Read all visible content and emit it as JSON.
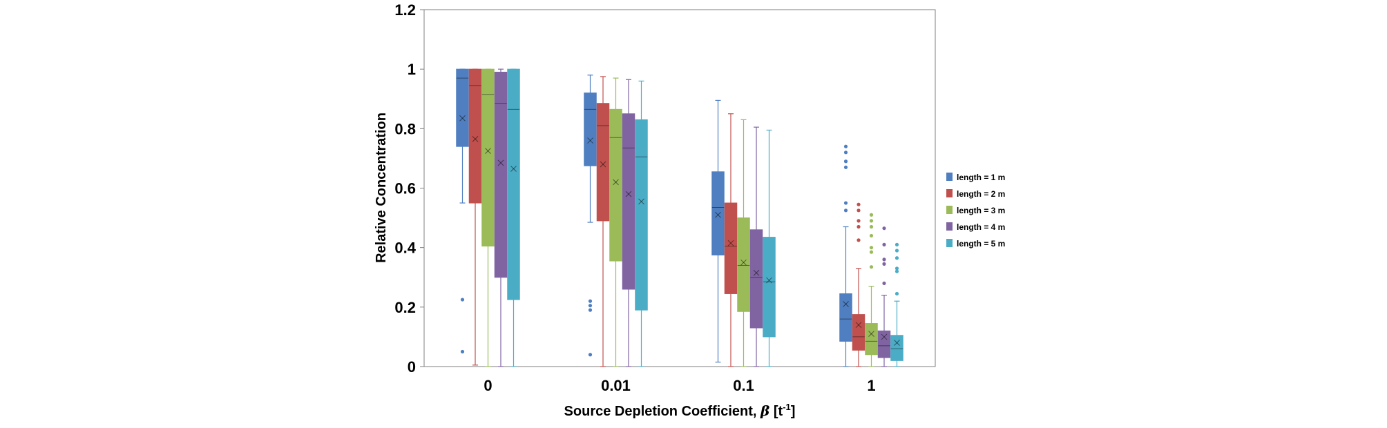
{
  "chart_data": {
    "type": "box",
    "xlabel_main": "Source Depletion Coefficient, ",
    "xlabel_beta": "β",
    "xlabel_unit_open": " [t",
    "xlabel_unit_sup": "-1",
    "xlabel_unit_close": "]",
    "ylabel": "Relative Concentration",
    "ylim": [
      0,
      1.2
    ],
    "yticks": [
      "0",
      "0.2",
      "0.4",
      "0.6",
      "0.8",
      "1",
      "1.2"
    ],
    "ytick_values": [
      0,
      0.2,
      0.4,
      0.6,
      0.8,
      1.0,
      1.2
    ],
    "categories": [
      "0",
      "0.01",
      "0.1",
      "1"
    ],
    "legend_position": "right",
    "series": [
      {
        "name": "length = 1 m",
        "color": "#4f7fc0",
        "boxes": [
          {
            "min": 0.55,
            "q1": 0.74,
            "median": 0.97,
            "q3": 1.0,
            "max": 1.0,
            "mean": 0.835,
            "outliers": [
              0.225,
              0.05
            ]
          },
          {
            "min": 0.485,
            "q1": 0.675,
            "median": 0.865,
            "q3": 0.92,
            "max": 0.98,
            "mean": 0.76,
            "outliers": [
              0.22,
              0.205,
              0.19,
              0.04
            ]
          },
          {
            "min": 0.015,
            "q1": 0.375,
            "median": 0.535,
            "q3": 0.655,
            "max": 0.895,
            "mean": 0.51,
            "outliers": []
          },
          {
            "min": 0.0,
            "q1": 0.085,
            "median": 0.16,
            "q3": 0.245,
            "max": 0.47,
            "mean": 0.21,
            "outliers": [
              0.74,
              0.72,
              0.69,
              0.67,
              0.55,
              0.525
            ]
          }
        ]
      },
      {
        "name": "length = 2 m",
        "color": "#c0504d",
        "boxes": [
          {
            "min": 0.005,
            "q1": 0.55,
            "median": 0.945,
            "q3": 1.0,
            "max": 1.0,
            "mean": 0.765,
            "outliers": []
          },
          {
            "min": 0.0,
            "q1": 0.49,
            "median": 0.81,
            "q3": 0.885,
            "max": 0.975,
            "mean": 0.68,
            "outliers": []
          },
          {
            "min": 0.0,
            "q1": 0.245,
            "median": 0.405,
            "q3": 0.55,
            "max": 0.85,
            "mean": 0.415,
            "outliers": []
          },
          {
            "min": 0.0,
            "q1": 0.055,
            "median": 0.1,
            "q3": 0.175,
            "max": 0.33,
            "mean": 0.14,
            "outliers": [
              0.545,
              0.525,
              0.49,
              0.47,
              0.425
            ]
          }
        ]
      },
      {
        "name": "length = 3 m",
        "color": "#9bbb59",
        "boxes": [
          {
            "min": 0.0,
            "q1": 0.405,
            "median": 0.915,
            "q3": 1.0,
            "max": 1.0,
            "mean": 0.725,
            "outliers": []
          },
          {
            "min": 0.0,
            "q1": 0.355,
            "median": 0.77,
            "q3": 0.865,
            "max": 0.97,
            "mean": 0.62,
            "outliers": []
          },
          {
            "min": 0.0,
            "q1": 0.185,
            "median": 0.34,
            "q3": 0.5,
            "max": 0.83,
            "mean": 0.35,
            "outliers": []
          },
          {
            "min": 0.0,
            "q1": 0.04,
            "median": 0.085,
            "q3": 0.145,
            "max": 0.27,
            "mean": 0.11,
            "outliers": [
              0.51,
              0.49,
              0.47,
              0.44,
              0.4,
              0.385,
              0.335
            ]
          }
        ]
      },
      {
        "name": "length = 4 m",
        "color": "#8064a2",
        "boxes": [
          {
            "min": 0.0,
            "q1": 0.3,
            "median": 0.885,
            "q3": 0.99,
            "max": 1.0,
            "mean": 0.685,
            "outliers": []
          },
          {
            "min": 0.0,
            "q1": 0.26,
            "median": 0.735,
            "q3": 0.85,
            "max": 0.965,
            "mean": 0.58,
            "outliers": []
          },
          {
            "min": 0.0,
            "q1": 0.13,
            "median": 0.3,
            "q3": 0.46,
            "max": 0.805,
            "mean": 0.315,
            "outliers": []
          },
          {
            "min": 0.0,
            "q1": 0.03,
            "median": 0.07,
            "q3": 0.12,
            "max": 0.24,
            "mean": 0.1,
            "outliers": [
              0.465,
              0.41,
              0.36,
              0.345,
              0.28
            ]
          }
        ]
      },
      {
        "name": "length = 5 m",
        "color": "#4bacc6",
        "boxes": [
          {
            "min": 0.0,
            "q1": 0.225,
            "median": 0.865,
            "q3": 1.0,
            "max": 1.0,
            "mean": 0.665,
            "outliers": []
          },
          {
            "min": 0.0,
            "q1": 0.19,
            "median": 0.705,
            "q3": 0.83,
            "max": 0.96,
            "mean": 0.555,
            "outliers": []
          },
          {
            "min": 0.0,
            "q1": 0.1,
            "median": 0.285,
            "q3": 0.435,
            "max": 0.795,
            "mean": 0.29,
            "outliers": []
          },
          {
            "min": 0.0,
            "q1": 0.02,
            "median": 0.06,
            "q3": 0.105,
            "max": 0.22,
            "mean": 0.08,
            "outliers": [
              0.41,
              0.39,
              0.365,
              0.33,
              0.32,
              0.245
            ]
          }
        ]
      }
    ]
  }
}
